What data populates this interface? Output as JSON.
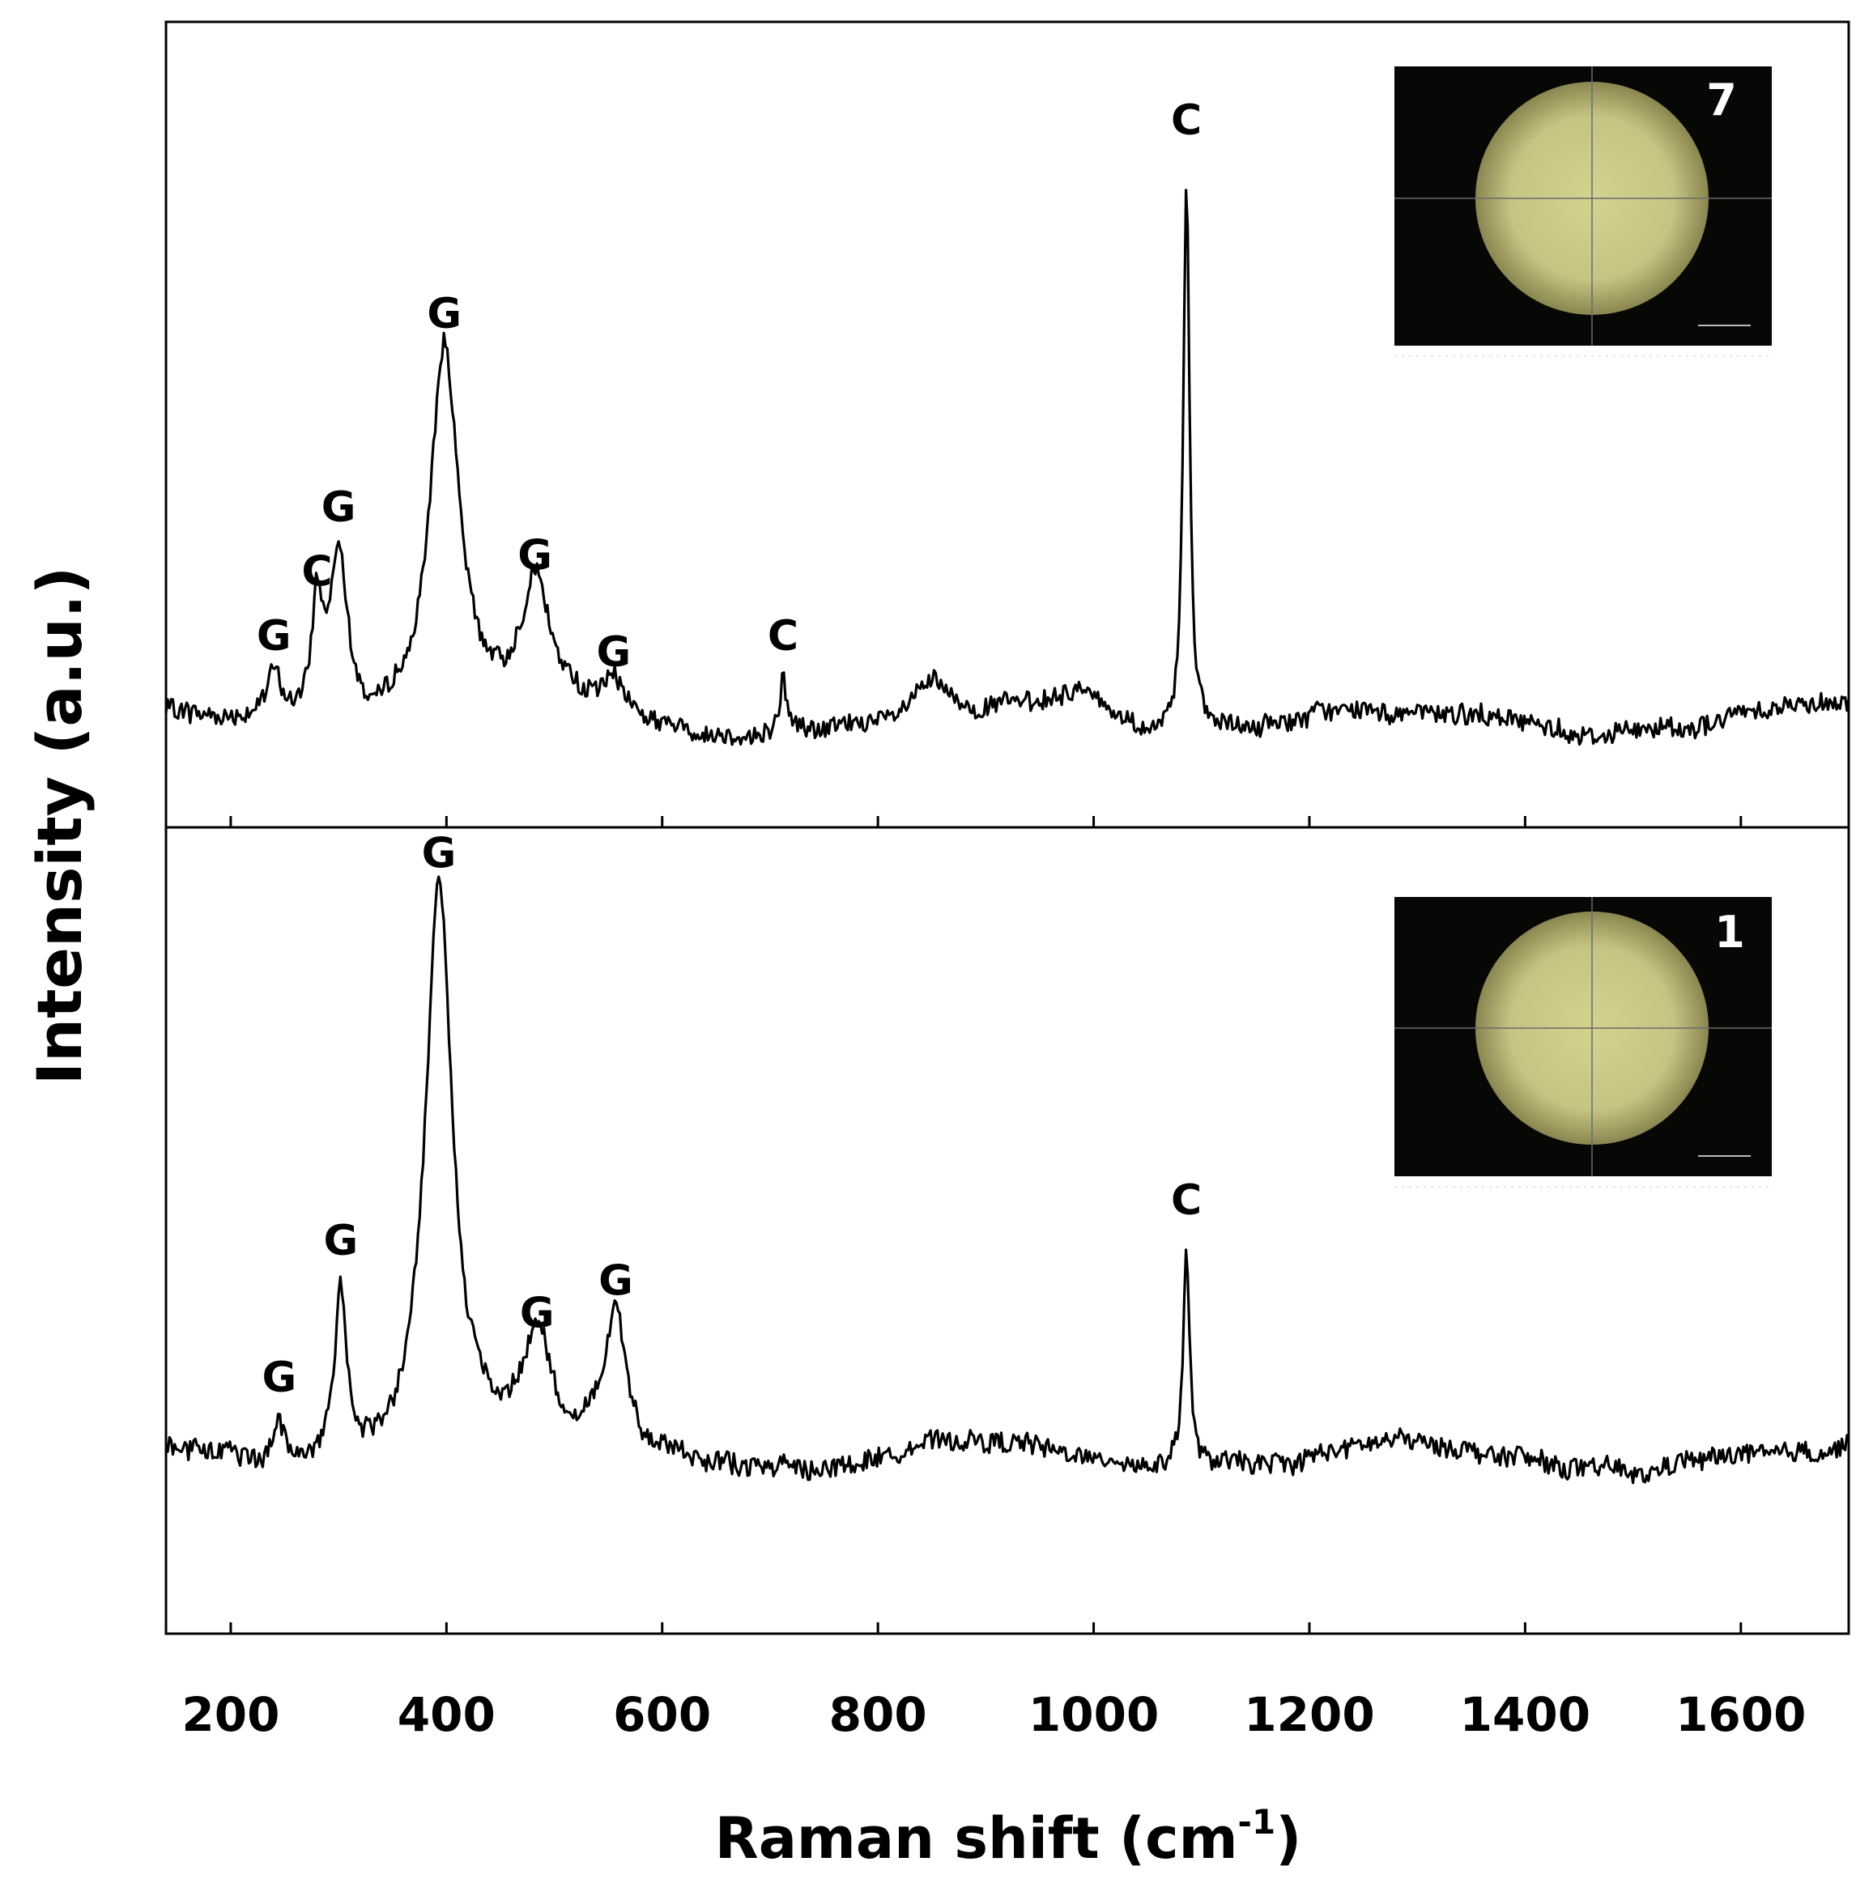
{
  "chart_data": {
    "type": "line",
    "xlabel": "Raman shift (cm",
    "xlabel_superscript": "-1",
    "xlabel_close": ")",
    "ylabel": "Intensity (a.u.)",
    "xlim": [
      140,
      1700
    ],
    "x_ticks": [
      200,
      400,
      600,
      800,
      1000,
      1200,
      1400,
      1600
    ],
    "y_ticks": [],
    "grid": false,
    "legend": "none",
    "line_color": "#000000",
    "panels": [
      {
        "position": "top",
        "inset_label": "7",
        "ylim": [
          0,
          100
        ],
        "baseline": 13,
        "peaks": [
          {
            "x": 240,
            "height": 6,
            "width": 9,
            "label": "G"
          },
          {
            "x": 280,
            "height": 14,
            "width": 6,
            "label": "C"
          },
          {
            "x": 300,
            "height": 22,
            "width": 10,
            "label": "G"
          },
          {
            "x": 398,
            "height": 46,
            "width": 16,
            "label": "G"
          },
          {
            "x": 482,
            "height": 16,
            "width": 15,
            "label": "G"
          },
          {
            "x": 555,
            "height": 4,
            "width": 12,
            "label": "G"
          },
          {
            "x": 712,
            "height": 6,
            "width": 3,
            "label": "C"
          },
          {
            "x": 850,
            "height": 4,
            "width": 18,
            "label": ""
          },
          {
            "x": 990,
            "height": 4,
            "width": 28,
            "label": ""
          },
          {
            "x": 1086,
            "height": 70,
            "width": 3.5,
            "label": "C"
          }
        ]
      },
      {
        "position": "bottom",
        "inset_label": "1",
        "ylim": [
          0,
          100
        ],
        "baseline": 22,
        "peaks": [
          {
            "x": 245,
            "height": 5,
            "width": 6,
            "label": "G"
          },
          {
            "x": 302,
            "height": 22,
            "width": 7,
            "label": "G"
          },
          {
            "x": 393,
            "height": 70,
            "width": 15,
            "label": "G"
          },
          {
            "x": 484,
            "height": 13,
            "width": 14,
            "label": "G"
          },
          {
            "x": 557,
            "height": 17,
            "width": 12,
            "label": "G"
          },
          {
            "x": 1086,
            "height": 27,
            "width": 3.5,
            "label": "C"
          }
        ]
      }
    ]
  }
}
